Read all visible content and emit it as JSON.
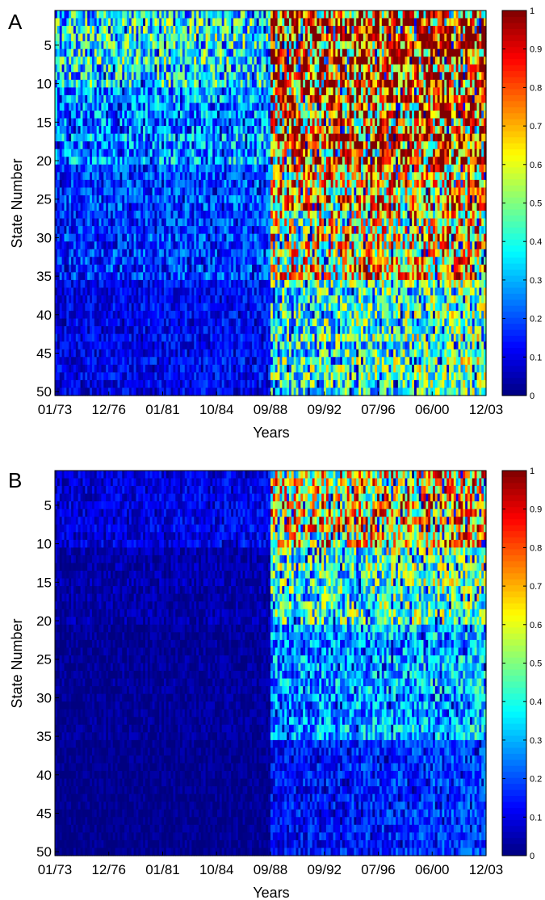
{
  "chart_data": [
    {
      "type": "heatmap",
      "panel_label": "A",
      "xlabel": "Years",
      "ylabel": "State Number",
      "x_tick_labels": [
        "01/73",
        "12/76",
        "01/81",
        "10/84",
        "09/88",
        "09/92",
        "07/96",
        "06/00",
        "12/03"
      ],
      "y_tick_labels": [
        "5",
        "10",
        "15",
        "20",
        "25",
        "30",
        "35",
        "40",
        "45",
        "50"
      ],
      "y_ticks": [
        5,
        10,
        15,
        20,
        25,
        30,
        35,
        40,
        45,
        50
      ],
      "ylim": [
        1,
        50
      ],
      "n_states": 50,
      "n_time_steps": 372,
      "time_range": [
        "01/73",
        "12/03"
      ],
      "colorbar": {
        "colormap": "jet",
        "range": [
          0,
          1
        ],
        "ticks": [
          0,
          0.1,
          0.2,
          0.3,
          0.4,
          0.5,
          0.6,
          0.7,
          0.8,
          0.9,
          1
        ],
        "tick_labels": [
          "0",
          "0.1",
          "0.2",
          "0.3",
          "0.4",
          "0.5",
          "0.6",
          "0.7",
          "0.8",
          "0.9",
          "1"
        ]
      },
      "regime_change": "09/88",
      "approx_mean_values": {
        "before_09_88": {
          "states_1_10": 0.38,
          "states_11_20": 0.26,
          "states_21_35": 0.17,
          "states_36_50": 0.1
        },
        "after_09_88": {
          "states_1_10": 0.85,
          "states_11_20": 0.75,
          "states_21_35": 0.62,
          "states_36_50": 0.4
        }
      }
    },
    {
      "type": "heatmap",
      "panel_label": "B",
      "xlabel": "Years",
      "ylabel": "State Number",
      "x_tick_labels": [
        "01/73",
        "12/76",
        "01/81",
        "10/84",
        "09/88",
        "09/92",
        "07/96",
        "06/00",
        "12/03"
      ],
      "y_tick_labels": [
        "5",
        "10",
        "15",
        "20",
        "25",
        "30",
        "35",
        "40",
        "45",
        "50"
      ],
      "y_ticks": [
        5,
        10,
        15,
        20,
        25,
        30,
        35,
        40,
        45,
        50
      ],
      "ylim": [
        1,
        50
      ],
      "n_states": 50,
      "n_time_steps": 372,
      "time_range": [
        "01/73",
        "12/03"
      ],
      "colorbar": {
        "colormap": "jet",
        "range": [
          0,
          1
        ],
        "ticks": [
          0,
          0.1,
          0.2,
          0.3,
          0.4,
          0.5,
          0.6,
          0.7,
          0.8,
          0.9,
          1
        ],
        "tick_labels": [
          "0",
          "0.1",
          "0.2",
          "0.3",
          "0.4",
          "0.5",
          "0.6",
          "0.7",
          "0.8",
          "0.9",
          "1"
        ]
      },
      "regime_change": "09/88",
      "approx_mean_values": {
        "before_09_88": {
          "states_1_10": 0.08,
          "states_11_20": 0.04,
          "states_21_35": 0.02,
          "states_36_50": 0.01
        },
        "after_09_88": {
          "states_1_10": 0.6,
          "states_11_20": 0.4,
          "states_21_35": 0.25,
          "states_36_50": 0.12
        }
      }
    }
  ]
}
